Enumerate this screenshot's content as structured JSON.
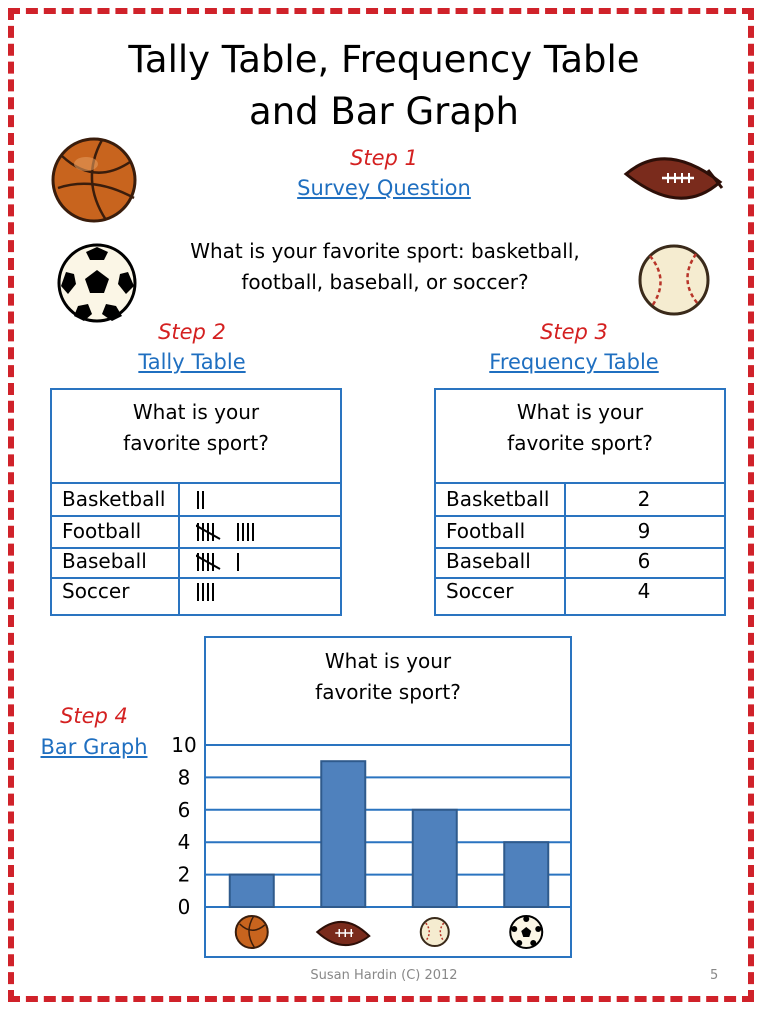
{
  "title_line1": "Tally Table, Frequency Table",
  "title_line2": "and Bar Graph",
  "step1": {
    "label": "Step 1",
    "link": "Survey Question"
  },
  "question_line1": "What is your favorite sport:  basketball,",
  "question_line2": "football, baseball, or soccer?",
  "step2": {
    "label": "Step 2",
    "link": "Tally Table"
  },
  "step3": {
    "label": "Step 3",
    "link": "Frequency Table"
  },
  "step4": {
    "label": "Step 4",
    "link": "Bar  Graph"
  },
  "table_heading_line1": "What is your",
  "table_heading_line2": "favorite sport?",
  "tally_rows": [
    {
      "sport": "Basketball",
      "tally": 2
    },
    {
      "sport": "Football",
      "tally": 9
    },
    {
      "sport": "Baseball",
      "tally": 6
    },
    {
      "sport": "Soccer",
      "tally": 4
    }
  ],
  "freq_rows": [
    {
      "sport": "Basketball",
      "count": "2"
    },
    {
      "sport": "Football",
      "count": "9"
    },
    {
      "sport": "Baseball",
      "count": "6"
    },
    {
      "sport": "Soccer",
      "count": "4"
    }
  ],
  "footer": "Susan Hardin (C) 2012",
  "page_number": "5",
  "icons": [
    "basketball-icon",
    "football-icon",
    "soccer-ball-icon",
    "baseball-icon"
  ],
  "colors": {
    "accent_red": "#d0222a",
    "step_red": "#d42020",
    "link_blue": "#1f6fc0",
    "bar_blue": "#4f81bd"
  },
  "chart_data": {
    "type": "bar",
    "title": "What is your favorite sport?",
    "categories": [
      "Basketball",
      "Football",
      "Baseball",
      "Soccer"
    ],
    "category_icons": [
      "basketball-icon",
      "football-icon",
      "baseball-icon",
      "soccer-ball-icon"
    ],
    "values": [
      2,
      9,
      6,
      4
    ],
    "yticks": [
      0,
      2,
      4,
      6,
      8,
      10
    ],
    "ylim": [
      0,
      10
    ],
    "grid": true,
    "xlabel": "",
    "ylabel": ""
  }
}
